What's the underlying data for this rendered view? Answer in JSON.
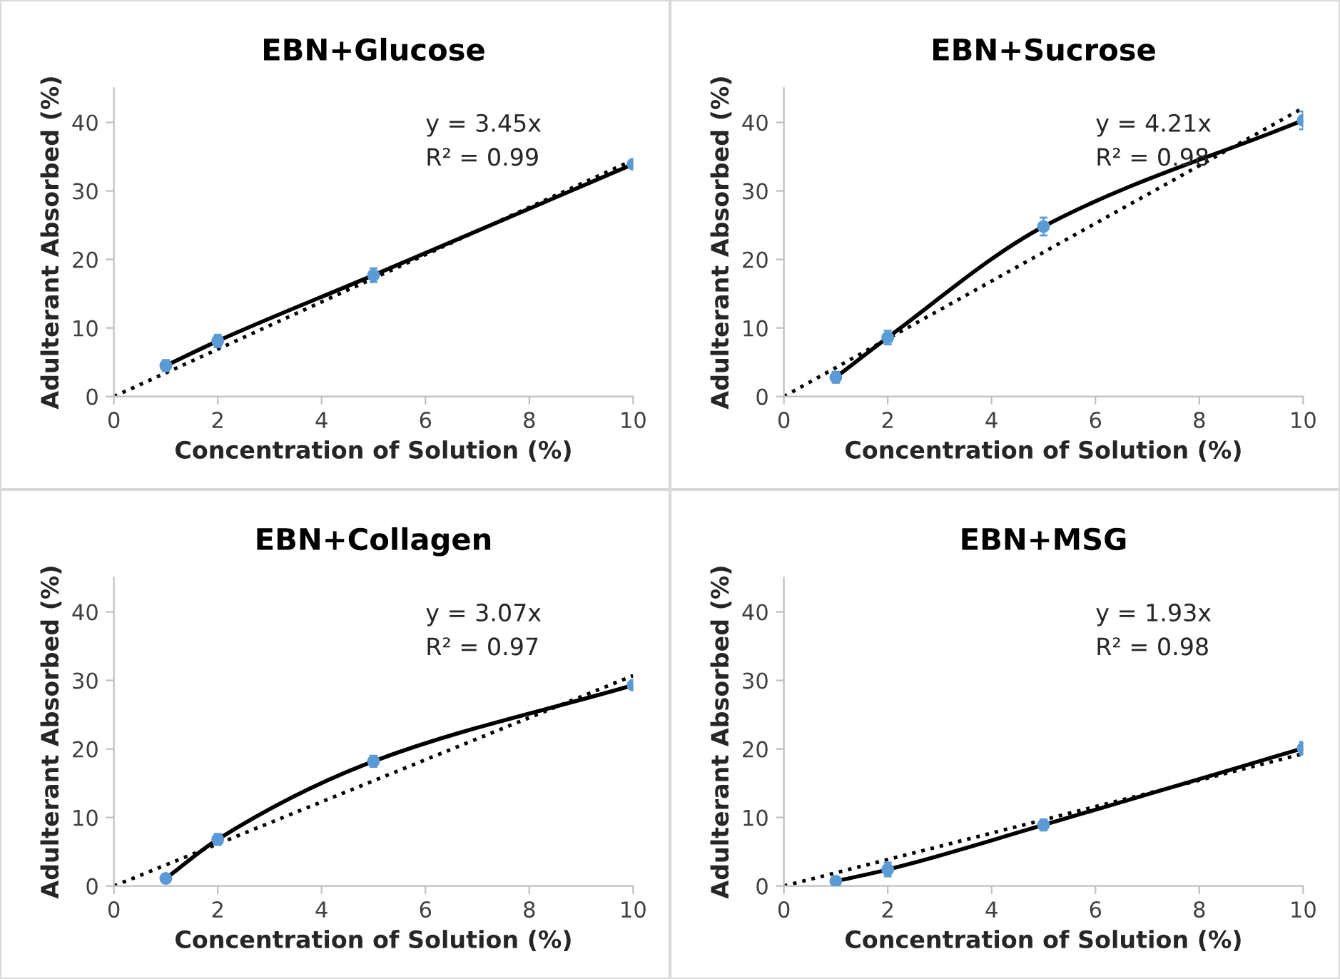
{
  "chart_data": [
    {
      "type": "scatter",
      "title": "EBN+Glucose",
      "xlabel": "Concentration of Solution (%)",
      "ylabel": "Adulterant Absorbed (%)",
      "xlim": [
        0,
        10
      ],
      "xticks": [
        0,
        2,
        4,
        6,
        8,
        10
      ],
      "ylim": [
        0,
        45
      ],
      "yticks": [
        0,
        10,
        20,
        30,
        40
      ],
      "grid": false,
      "legend": false,
      "annotations": [
        "y = 3.45x",
        "R² = 0.99"
      ],
      "series": [
        {
          "type": "scatter",
          "color": "#5b9bd5",
          "marker": "circle",
          "x": [
            1,
            2,
            5,
            10
          ],
          "values": [
            4.5,
            8.1,
            17.7,
            33.9
          ],
          "errors": [
            0.8,
            0.9,
            1.0,
            0.5
          ]
        },
        {
          "type": "line",
          "color": "#000000",
          "line_style": "solid",
          "x": [
            1,
            2,
            5,
            10
          ],
          "values": [
            4.5,
            8.1,
            17.7,
            33.9
          ]
        },
        {
          "type": "line",
          "color": "#000000",
          "line_style": "dotted",
          "x": [
            0,
            10
          ],
          "values": [
            0,
            34.5
          ]
        }
      ]
    },
    {
      "type": "scatter",
      "title": "EBN+Collagen",
      "xlabel": "Concentration of Solution (%)",
      "ylabel": "Adulterant Absorbed (%)",
      "xlim": [
        0,
        10
      ],
      "xticks": [
        0,
        2,
        4,
        6,
        8,
        10
      ],
      "ylim": [
        0,
        45
      ],
      "yticks": [
        0,
        10,
        20,
        30,
        40
      ],
      "grid": false,
      "legend": false,
      "annotations": [
        "y = 3.07x",
        "R² = 0.97"
      ],
      "series": [
        {
          "type": "scatter",
          "color": "#5b9bd5",
          "marker": "circle",
          "x": [
            1,
            2,
            5,
            10
          ],
          "values": [
            1.1,
            6.8,
            18.2,
            29.3
          ],
          "errors": [
            0.6,
            0.8,
            0.8,
            0.4
          ]
        },
        {
          "type": "line",
          "color": "#000000",
          "line_style": "solid",
          "x": [
            1,
            2,
            5,
            10
          ],
          "values": [
            1.1,
            6.8,
            18.2,
            29.3
          ]
        },
        {
          "type": "line",
          "color": "#000000",
          "line_style": "dotted",
          "x": [
            0,
            10
          ],
          "values": [
            0,
            30.7
          ]
        }
      ]
    },
    {
      "type": "scatter",
      "title": "EBN+Sucrose",
      "xlabel": "Concentration of Solution (%)",
      "ylabel": "Adulterant Absorbed (%)",
      "xlim": [
        0,
        10
      ],
      "xticks": [
        0,
        2,
        4,
        6,
        8,
        10
      ],
      "ylim": [
        0,
        45
      ],
      "yticks": [
        0,
        10,
        20,
        30,
        40
      ],
      "grid": false,
      "legend": false,
      "annotations": [
        "y = 4.21x",
        "R² = 0.98"
      ],
      "series": [
        {
          "type": "scatter",
          "color": "#5b9bd5",
          "marker": "circle",
          "x": [
            1,
            2,
            5,
            10
          ],
          "values": [
            2.8,
            8.6,
            24.8,
            40.3
          ],
          "errors": [
            0.8,
            1.0,
            1.3,
            1.3
          ]
        },
        {
          "type": "line",
          "color": "#000000",
          "line_style": "solid",
          "x": [
            1,
            2,
            5,
            10
          ],
          "values": [
            2.8,
            8.6,
            24.8,
            40.3
          ]
        },
        {
          "type": "line",
          "color": "#000000",
          "line_style": "dotted",
          "x": [
            0,
            10
          ],
          "values": [
            0,
            42.1
          ]
        }
      ]
    },
    {
      "type": "scatter",
      "title": "EBN+MSG",
      "xlabel": "Concentration of Solution (%)",
      "ylabel": "Adulterant Absorbed (%)",
      "xlim": [
        0,
        10
      ],
      "xticks": [
        0,
        2,
        4,
        6,
        8,
        10
      ],
      "ylim": [
        0,
        45
      ],
      "yticks": [
        0,
        10,
        20,
        30,
        40
      ],
      "grid": false,
      "legend": false,
      "annotations": [
        "y = 1.93x",
        "R² = 0.98"
      ],
      "series": [
        {
          "type": "scatter",
          "color": "#5b9bd5",
          "marker": "circle",
          "x": [
            1,
            2,
            5,
            10
          ],
          "values": [
            0.7,
            2.4,
            8.9,
            20.1
          ],
          "errors": [
            0.5,
            1.0,
            0.8,
            0.9
          ]
        },
        {
          "type": "line",
          "color": "#000000",
          "line_style": "solid",
          "x": [
            1,
            2,
            5,
            10
          ],
          "values": [
            0.7,
            2.4,
            8.9,
            20.1
          ]
        },
        {
          "type": "line",
          "color": "#000000",
          "line_style": "dotted",
          "x": [
            0,
            10
          ],
          "values": [
            0,
            19.3
          ]
        }
      ]
    }
  ]
}
